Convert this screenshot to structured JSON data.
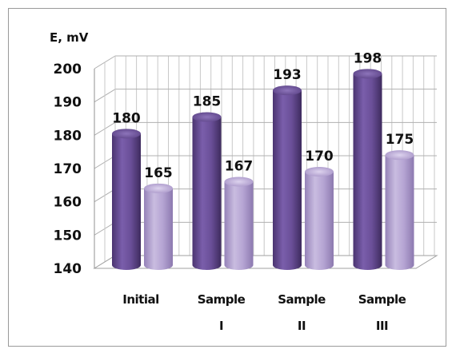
{
  "chart_data": {
    "type": "bar",
    "style": "3d-cylinder",
    "ylabel": "E, mV",
    "ylim": [
      140,
      200
    ],
    "yticks": [
      140,
      150,
      160,
      170,
      180,
      190,
      200
    ],
    "categories": [
      {
        "line1": "Initial",
        "line2": ""
      },
      {
        "line1": "Sample",
        "line2": "I"
      },
      {
        "line1": "Sample",
        "line2": "II"
      },
      {
        "line1": "Sample",
        "line2": "III"
      }
    ],
    "series": [
      {
        "values": [
          180,
          185,
          193,
          198
        ],
        "color": "#6b4f9a"
      },
      {
        "values": [
          165,
          167,
          170,
          175
        ],
        "color": "#b3a2d0"
      }
    ],
    "grid": true,
    "legend": "none"
  }
}
